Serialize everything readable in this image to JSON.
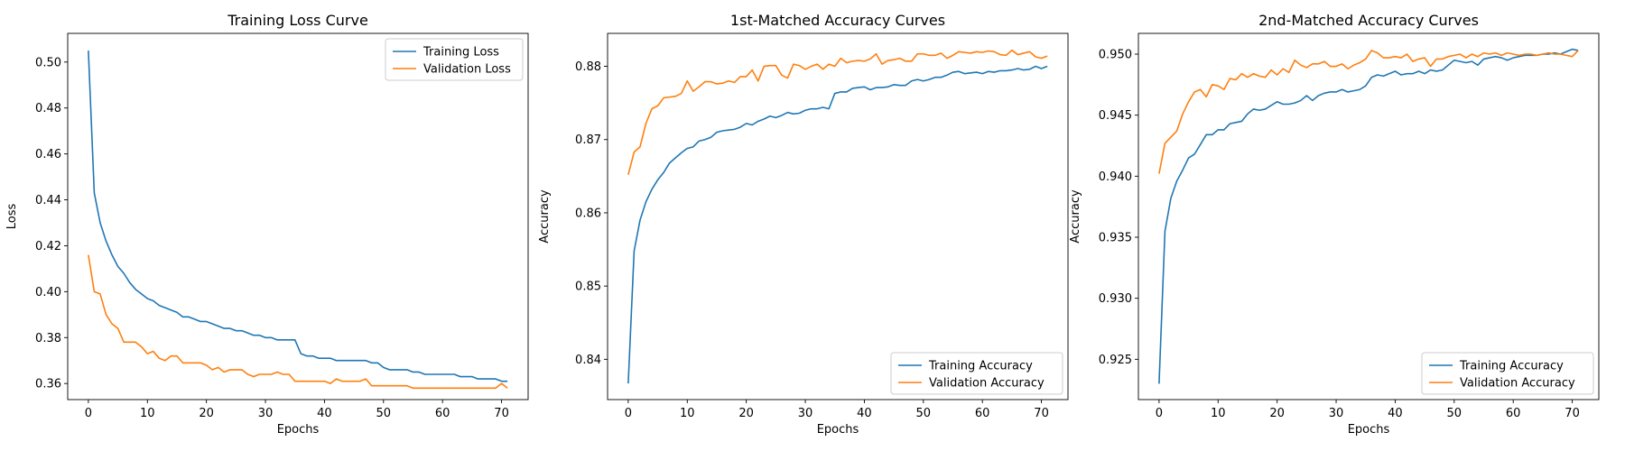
{
  "colors": {
    "training": "#1f77b4",
    "validation": "#ff7f0e"
  },
  "chart_data": [
    {
      "type": "line",
      "title": "Training Loss Curve",
      "xlabel": "Epochs",
      "ylabel": "Loss",
      "xlim": [
        -3.5,
        74.5
      ],
      "ylim": [
        0.353,
        0.5125
      ],
      "xticks": [
        0,
        10,
        20,
        30,
        40,
        50,
        60,
        70
      ],
      "yticks": [
        0.36,
        0.38,
        0.4,
        0.42,
        0.44,
        0.46,
        0.48,
        0.5
      ],
      "ytick_labels": [
        "0.36",
        "0.38",
        "0.40",
        "0.42",
        "0.44",
        "0.46",
        "0.48",
        "0.50"
      ],
      "legend": "upper-right",
      "grid": false,
      "series": [
        {
          "name": "Training Loss",
          "color": "#1f77b4",
          "values": [
            0.505,
            0.443,
            0.43,
            0.422,
            0.416,
            0.411,
            0.408,
            0.404,
            0.401,
            0.399,
            0.397,
            0.396,
            0.394,
            0.393,
            0.392,
            0.391,
            0.389,
            0.389,
            0.388,
            0.387,
            0.387,
            0.386,
            0.385,
            0.384,
            0.384,
            0.383,
            0.383,
            0.382,
            0.381,
            0.381,
            0.38,
            0.38,
            0.379,
            0.379,
            0.379,
            0.379,
            0.373,
            0.372,
            0.372,
            0.371,
            0.371,
            0.371,
            0.37,
            0.37,
            0.37,
            0.37,
            0.37,
            0.37,
            0.369,
            0.369,
            0.367,
            0.366,
            0.366,
            0.366,
            0.366,
            0.365,
            0.365,
            0.364,
            0.364,
            0.364,
            0.364,
            0.364,
            0.364,
            0.363,
            0.363,
            0.363,
            0.362,
            0.362,
            0.362,
            0.362,
            0.361,
            0.361
          ]
        },
        {
          "name": "Validation Loss",
          "color": "#ff7f0e",
          "values": [
            0.416,
            0.4,
            0.399,
            0.39,
            0.386,
            0.384,
            0.378,
            0.378,
            0.378,
            0.376,
            0.373,
            0.374,
            0.371,
            0.37,
            0.372,
            0.372,
            0.369,
            0.369,
            0.369,
            0.369,
            0.368,
            0.366,
            0.367,
            0.365,
            0.366,
            0.366,
            0.366,
            0.364,
            0.363,
            0.364,
            0.364,
            0.364,
            0.365,
            0.364,
            0.364,
            0.361,
            0.361,
            0.361,
            0.361,
            0.361,
            0.361,
            0.36,
            0.362,
            0.361,
            0.361,
            0.361,
            0.361,
            0.362,
            0.359,
            0.359,
            0.359,
            0.359,
            0.359,
            0.359,
            0.359,
            0.358,
            0.358,
            0.358,
            0.358,
            0.358,
            0.358,
            0.358,
            0.358,
            0.358,
            0.358,
            0.358,
            0.358,
            0.358,
            0.358,
            0.358,
            0.36,
            0.358
          ]
        }
      ]
    },
    {
      "type": "line",
      "title": "1st-Matched Accuracy Curves",
      "xlabel": "Epochs",
      "ylabel": "Accuracy",
      "xlim": [
        -3.5,
        74.5
      ],
      "ylim": [
        0.8345,
        0.8845
      ],
      "xticks": [
        0,
        10,
        20,
        30,
        40,
        50,
        60,
        70
      ],
      "yticks": [
        0.84,
        0.85,
        0.86,
        0.87,
        0.88
      ],
      "ytick_labels": [
        "0.84",
        "0.85",
        "0.86",
        "0.87",
        "0.88"
      ],
      "legend": "lower-right",
      "grid": false,
      "series": [
        {
          "name": "Training Accuracy",
          "color": "#1f77b4",
          "values": [
            0.8367,
            0.8548,
            0.859,
            0.8615,
            0.8632,
            0.8645,
            0.8655,
            0.8668,
            0.8675,
            0.8682,
            0.8688,
            0.869,
            0.8698,
            0.87,
            0.8703,
            0.871,
            0.8712,
            0.8713,
            0.8714,
            0.8717,
            0.8722,
            0.872,
            0.8725,
            0.8728,
            0.8732,
            0.873,
            0.8733,
            0.8737,
            0.8735,
            0.8736,
            0.874,
            0.8742,
            0.8742,
            0.8744,
            0.8742,
            0.8763,
            0.8765,
            0.8765,
            0.877,
            0.8771,
            0.8772,
            0.8768,
            0.8771,
            0.8771,
            0.8772,
            0.8775,
            0.8774,
            0.8774,
            0.878,
            0.8782,
            0.878,
            0.8782,
            0.8785,
            0.8785,
            0.8788,
            0.8792,
            0.8793,
            0.879,
            0.8791,
            0.8792,
            0.879,
            0.8793,
            0.8792,
            0.8794,
            0.8794,
            0.8795,
            0.8797,
            0.8795,
            0.8796,
            0.88,
            0.8797,
            0.88
          ]
        },
        {
          "name": "Validation Accuracy",
          "color": "#ff7f0e",
          "values": [
            0.8652,
            0.8683,
            0.869,
            0.8722,
            0.8742,
            0.8746,
            0.8757,
            0.8758,
            0.8759,
            0.8763,
            0.878,
            0.8766,
            0.8772,
            0.8779,
            0.8779,
            0.8776,
            0.8777,
            0.878,
            0.8778,
            0.8786,
            0.8786,
            0.8795,
            0.878,
            0.88,
            0.8801,
            0.8801,
            0.8788,
            0.8784,
            0.8803,
            0.8801,
            0.8796,
            0.88,
            0.8803,
            0.8796,
            0.8803,
            0.88,
            0.8811,
            0.8805,
            0.8807,
            0.8808,
            0.8807,
            0.881,
            0.8817,
            0.8803,
            0.8808,
            0.8809,
            0.8811,
            0.8807,
            0.8807,
            0.8817,
            0.8817,
            0.8815,
            0.8815,
            0.8818,
            0.8811,
            0.8815,
            0.882,
            0.8819,
            0.8818,
            0.882,
            0.8819,
            0.8821,
            0.882,
            0.8816,
            0.8815,
            0.8822,
            0.8816,
            0.8818,
            0.882,
            0.8813,
            0.8811,
            0.8814
          ]
        }
      ]
    },
    {
      "type": "line",
      "title": "2nd-Matched Accuracy Curves",
      "xlabel": "Epochs",
      "ylabel": "Accuracy",
      "xlim": [
        -3.5,
        74.5
      ],
      "ylim": [
        0.9217,
        0.9517
      ],
      "xticks": [
        0,
        10,
        20,
        30,
        40,
        50,
        60,
        70
      ],
      "yticks": [
        0.925,
        0.93,
        0.935,
        0.94,
        0.945,
        0.95
      ],
      "ytick_labels": [
        "0.925",
        "0.930",
        "0.935",
        "0.940",
        "0.945",
        "0.950"
      ],
      "legend": "lower-right",
      "grid": false,
      "series": [
        {
          "name": "Training Accuracy",
          "color": "#1f77b4",
          "values": [
            0.923,
            0.9355,
            0.9382,
            0.9396,
            0.9405,
            0.9415,
            0.9418,
            0.9426,
            0.9434,
            0.9434,
            0.9438,
            0.9438,
            0.9443,
            0.9444,
            0.9445,
            0.9451,
            0.9455,
            0.9454,
            0.9455,
            0.9458,
            0.9461,
            0.9459,
            0.9459,
            0.946,
            0.9462,
            0.9466,
            0.9462,
            0.9466,
            0.9468,
            0.9469,
            0.9469,
            0.9471,
            0.9469,
            0.947,
            0.9471,
            0.9474,
            0.9481,
            0.9483,
            0.9482,
            0.9484,
            0.9486,
            0.9483,
            0.9484,
            0.9484,
            0.9486,
            0.9484,
            0.9487,
            0.9486,
            0.9487,
            0.9491,
            0.9495,
            0.9494,
            0.9493,
            0.9494,
            0.9491,
            0.9496,
            0.9497,
            0.9498,
            0.9497,
            0.9495,
            0.9497,
            0.9498,
            0.9499,
            0.9499,
            0.9499,
            0.95,
            0.95,
            0.9501,
            0.95,
            0.9502,
            0.9504,
            0.9503
          ]
        },
        {
          "name": "Validation Accuracy",
          "color": "#ff7f0e",
          "values": [
            0.9402,
            0.9427,
            0.9432,
            0.9437,
            0.9451,
            0.9461,
            0.9469,
            0.9471,
            0.9465,
            0.9475,
            0.9474,
            0.9471,
            0.948,
            0.9479,
            0.9484,
            0.9481,
            0.9484,
            0.9482,
            0.9481,
            0.9487,
            0.9483,
            0.9488,
            0.9485,
            0.9495,
            0.9491,
            0.9489,
            0.9492,
            0.9492,
            0.9494,
            0.949,
            0.949,
            0.9492,
            0.9488,
            0.9491,
            0.9493,
            0.9496,
            0.9503,
            0.9501,
            0.9497,
            0.9497,
            0.9498,
            0.9497,
            0.95,
            0.9494,
            0.9496,
            0.9497,
            0.949,
            0.9496,
            0.9496,
            0.9498,
            0.9499,
            0.95,
            0.9497,
            0.95,
            0.9498,
            0.9501,
            0.95,
            0.9501,
            0.9499,
            0.9501,
            0.95,
            0.9499,
            0.95,
            0.95,
            0.9499,
            0.95,
            0.9501,
            0.95,
            0.95,
            0.9499,
            0.9498,
            0.9503
          ]
        }
      ]
    }
  ]
}
